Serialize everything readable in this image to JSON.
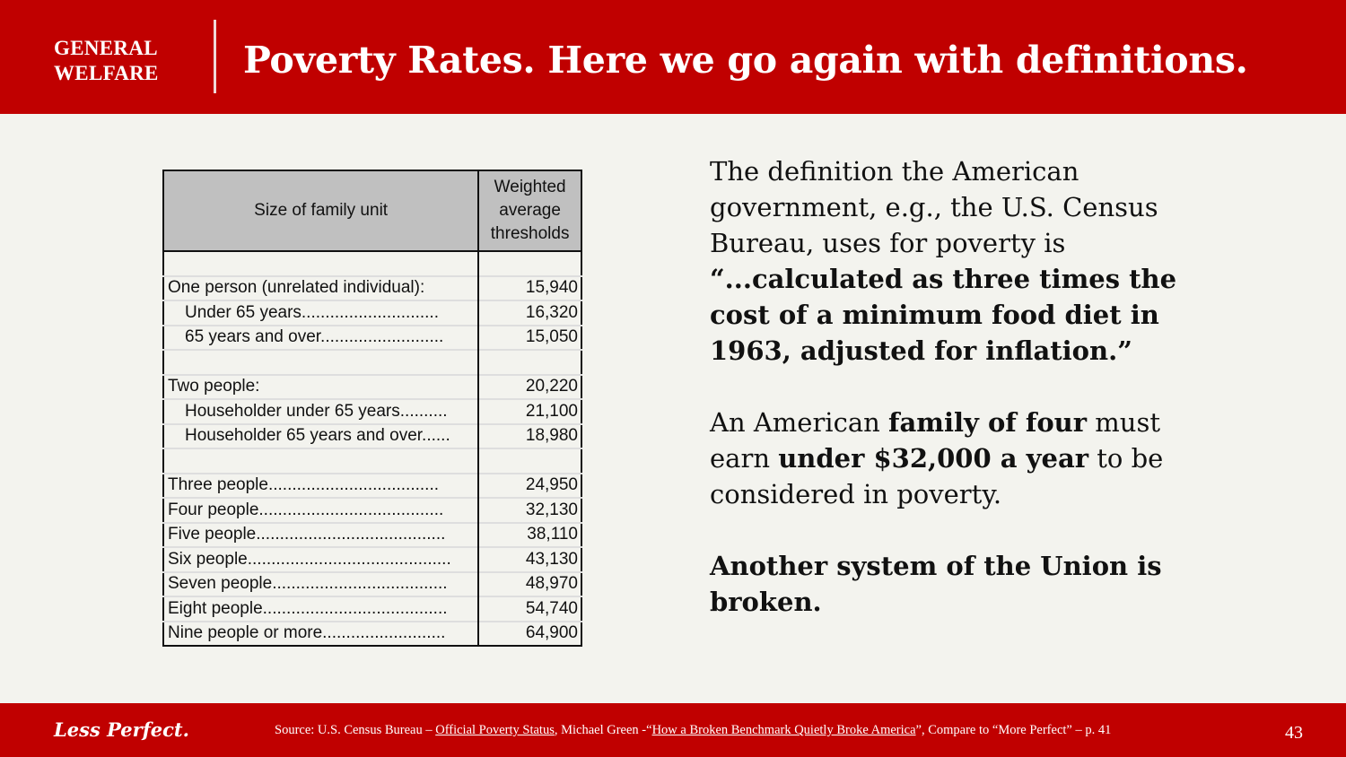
{
  "header": {
    "section_line1": "GENERAL",
    "section_line2": "WELFARE",
    "title": "Poverty Rates. Here we go again with definitions."
  },
  "table": {
    "col1_header": "Size of family unit",
    "col2_header_line1": "Weighted",
    "col2_header_line2": "average",
    "col2_header_line3": "thresholds",
    "rows": [
      {
        "label": "",
        "value": "",
        "indent": false
      },
      {
        "label": "One person (unrelated individual):",
        "value": "15,940",
        "indent": false
      },
      {
        "label": "Under 65 years.............................",
        "value": "16,320",
        "indent": true
      },
      {
        "label": "65 years and over..........................",
        "value": "15,050",
        "indent": true
      },
      {
        "label": "",
        "value": "",
        "indent": false
      },
      {
        "label": "Two people:",
        "value": "20,220",
        "indent": false
      },
      {
        "label": "Householder under 65 years..........",
        "value": "21,100",
        "indent": true
      },
      {
        "label": "Householder 65 years and over......",
        "value": "18,980",
        "indent": true
      },
      {
        "label": "",
        "value": "",
        "indent": false
      },
      {
        "label": "Three people....................................",
        "value": "24,950",
        "indent": false
      },
      {
        "label": "Four people.......................................",
        "value": "32,130",
        "indent": false
      },
      {
        "label": "Five people........................................",
        "value": "38,110",
        "indent": false
      },
      {
        "label": "Six people...........................................",
        "value": "43,130",
        "indent": false
      },
      {
        "label": "Seven people.....................................",
        "value": "48,970",
        "indent": false
      },
      {
        "label": "Eight people.......................................",
        "value": "54,740",
        "indent": false
      },
      {
        "label": "Nine people or more..........................",
        "value": "64,900",
        "indent": false
      }
    ]
  },
  "body_text": {
    "p1_plain": "The definition the American government, e.g., the U.S. Census Bureau, uses for poverty is ",
    "p1_bold": "“...calculated as three times the cost of a minimum food diet in 1963, adjusted for inflation.”",
    "p2_a": "An American ",
    "p2_b": "family of four",
    "p2_c": " must earn ",
    "p2_d": "under $32,000 a year",
    "p2_e": " to be considered in poverty.",
    "p3": "Another system of the Union is broken."
  },
  "footer": {
    "brand": "Less Perfect.",
    "source_prefix": "Source: U.S. Census Bureau – ",
    "source_link1": "Official Poverty Status",
    "source_mid": ", Michael Green -“",
    "source_link2": "How a Broken Benchmark Quietly Broke America",
    "source_suffix": "”, Compare to “More Perfect” – p. 41",
    "page_number": "43"
  },
  "colors": {
    "brand_red": "#c00000",
    "background": "#f3f3ee",
    "table_header_gray": "#c0c0c0"
  }
}
